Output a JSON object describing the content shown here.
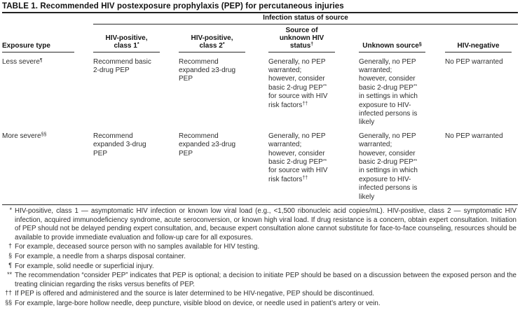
{
  "title": "TABLE 1. Recommended HIV postexposure prophylaxis (PEP) for percutaneous injuries",
  "table": {
    "span_header": "Infection status of source",
    "columns": [
      "Exposure type",
      "HIV-positive,\nclass 1^{*}",
      "HIV-positive,\nclass 2^{*}",
      "Source of\nunknown HIV\nstatus^{†}",
      "Unknown source^{§}",
      "HIV-negative"
    ],
    "rows": [
      {
        "exposure": "Less severe^{¶}",
        "cells": [
          "Recommend basic\n2-drug PEP",
          "Recommend\nexpanded ≥3-drug\nPEP",
          "Generally, no PEP\nwarranted;\nhowever, consider\nbasic 2-drug PEP^{**}\nfor source with HIV\nrisk factors^{††}",
          "Generally, no PEP\nwarranted;\nhowever, consider\nbasic 2-drug PEP^{**}\nin settings in which\nexposure to HIV-\ninfected persons is\nlikely",
          "No PEP warranted"
        ]
      },
      {
        "exposure": "More severe^{§§}",
        "cells": [
          "Recommend\nexpanded 3-drug\nPEP",
          "Recommend\nexpanded ≥3-drug\nPEP",
          "Generally, no PEP\nwarranted;\nhowever, consider\nbasic 2-drug PEP^{**}\nfor source with HIV\nrisk factors^{††}",
          "Generally, no PEP\nwarranted;\nhowever, consider\nbasic 2-drug PEP^{**}\nin settings in which\nexposure to HIV-\ninfected persons is\nlikely",
          "No PEP warranted"
        ]
      }
    ]
  },
  "footnotes": [
    {
      "symbol": "*",
      "text": "HIV-positive, class 1 — asymptomatic HIV infection or known low viral load (e.g., <1,500 ribonucleic acid copies/mL). HIV-positive, class 2 — symptomatic HIV infection, acquired immunodeficiency syndrome, acute seroconversion, or known high viral load. If drug resistance is a concern, obtain expert consultation. Initiation of PEP should not be delayed pending expert consultation, and, because expert consultation alone cannot substitute for face-to-face counseling, resources should be available to provide immediate evaluation and follow-up care for all exposures."
    },
    {
      "symbol": "†",
      "text": "For example, deceased source person with no samples available for HIV testing."
    },
    {
      "symbol": "§",
      "text": "For example, a needle from a sharps disposal container."
    },
    {
      "symbol": "¶",
      "text": "For example, solid needle or superficial injury."
    },
    {
      "symbol": "**",
      "text": "The recommendation “consider PEP” indicates that PEP is optional; a decision to initiate PEP should be based on a discussion between the exposed person and the treating clinician regarding the risks versus benefits of PEP."
    },
    {
      "symbol": "††",
      "text": "If PEP is offered and administered and the source is later determined to be HIV-negative, PEP should be discontinued."
    },
    {
      "symbol": "§§",
      "text": "For example, large-bore hollow needle, deep puncture, visible blood on device, or needle used in patient’s artery or vein."
    }
  ],
  "colors": {
    "background": "#ffffff",
    "text": "#2e2e2e",
    "heading": "#141414",
    "rule": "#2a2a2a"
  }
}
